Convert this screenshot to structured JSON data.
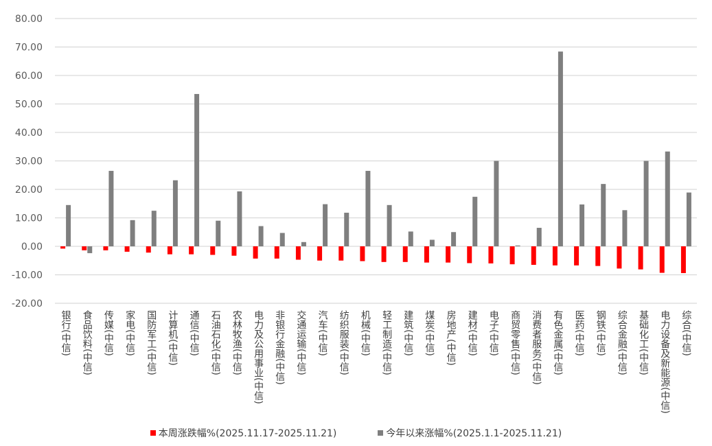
{
  "chart_data": {
    "type": "bar",
    "ylim": [
      -20,
      80
    ],
    "yticks": [
      "-20.00",
      "-10.00",
      "0.00",
      "10.00",
      "20.00",
      "30.00",
      "40.00",
      "50.00",
      "60.00",
      "70.00",
      "80.00"
    ],
    "grid": true,
    "legend_position": "bottom",
    "categories": [
      "银行(中信)",
      "食品饮料(中信)",
      "传媒(中信)",
      "家电(中信)",
      "国防军工(中信)",
      "计算机(中信)",
      "通信(中信)",
      "石油石化(中信)",
      "农林牧渔(中信)",
      "电力及公用事业(中信)",
      "非银行金融(中信)",
      "交通运输(中信)",
      "汽车(中信)",
      "纺织服装(中信)",
      "机械(中信)",
      "轻工制造(中信)",
      "建筑(中信)",
      "煤炭(中信)",
      "房地产(中信)",
      "建材(中信)",
      "电子(中信)",
      "商贸零售(中信)",
      "消费者服务(中信)",
      "有色金属(中信)",
      "医药(中信)",
      "钢铁(中信)",
      "综合金融(中信)",
      "基础化工(中信)",
      "电力设备及新能源(中信)",
      "综合(中信)"
    ],
    "series": [
      {
        "name": "本周涨跌幅%(2025.11.17-2025.11.21)",
        "color": "#ff0000",
        "values": [
          -0.8,
          -1.4,
          -1.4,
          -1.9,
          -2.2,
          -2.8,
          -2.8,
          -3.0,
          -3.3,
          -4.3,
          -4.3,
          -4.7,
          -5.0,
          -5.0,
          -5.2,
          -5.5,
          -5.5,
          -5.7,
          -5.7,
          -5.9,
          -6.0,
          -6.3,
          -6.5,
          -6.7,
          -6.7,
          -6.9,
          -7.8,
          -8.1,
          -9.3,
          -9.4
        ]
      },
      {
        "name": "今年以来涨幅%(2025.1.1-2025.11.21)",
        "color": "#7f7f7f",
        "values": [
          14.5,
          -2.4,
          26.5,
          9.2,
          12.5,
          23.2,
          53.5,
          9.0,
          19.3,
          7.1,
          4.7,
          1.5,
          14.8,
          11.8,
          26.5,
          14.5,
          5.2,
          2.3,
          5.0,
          17.4,
          30.0,
          0.3,
          6.5,
          68.4,
          14.7,
          21.9,
          12.7,
          30.0,
          33.3,
          18.9
        ]
      }
    ]
  }
}
